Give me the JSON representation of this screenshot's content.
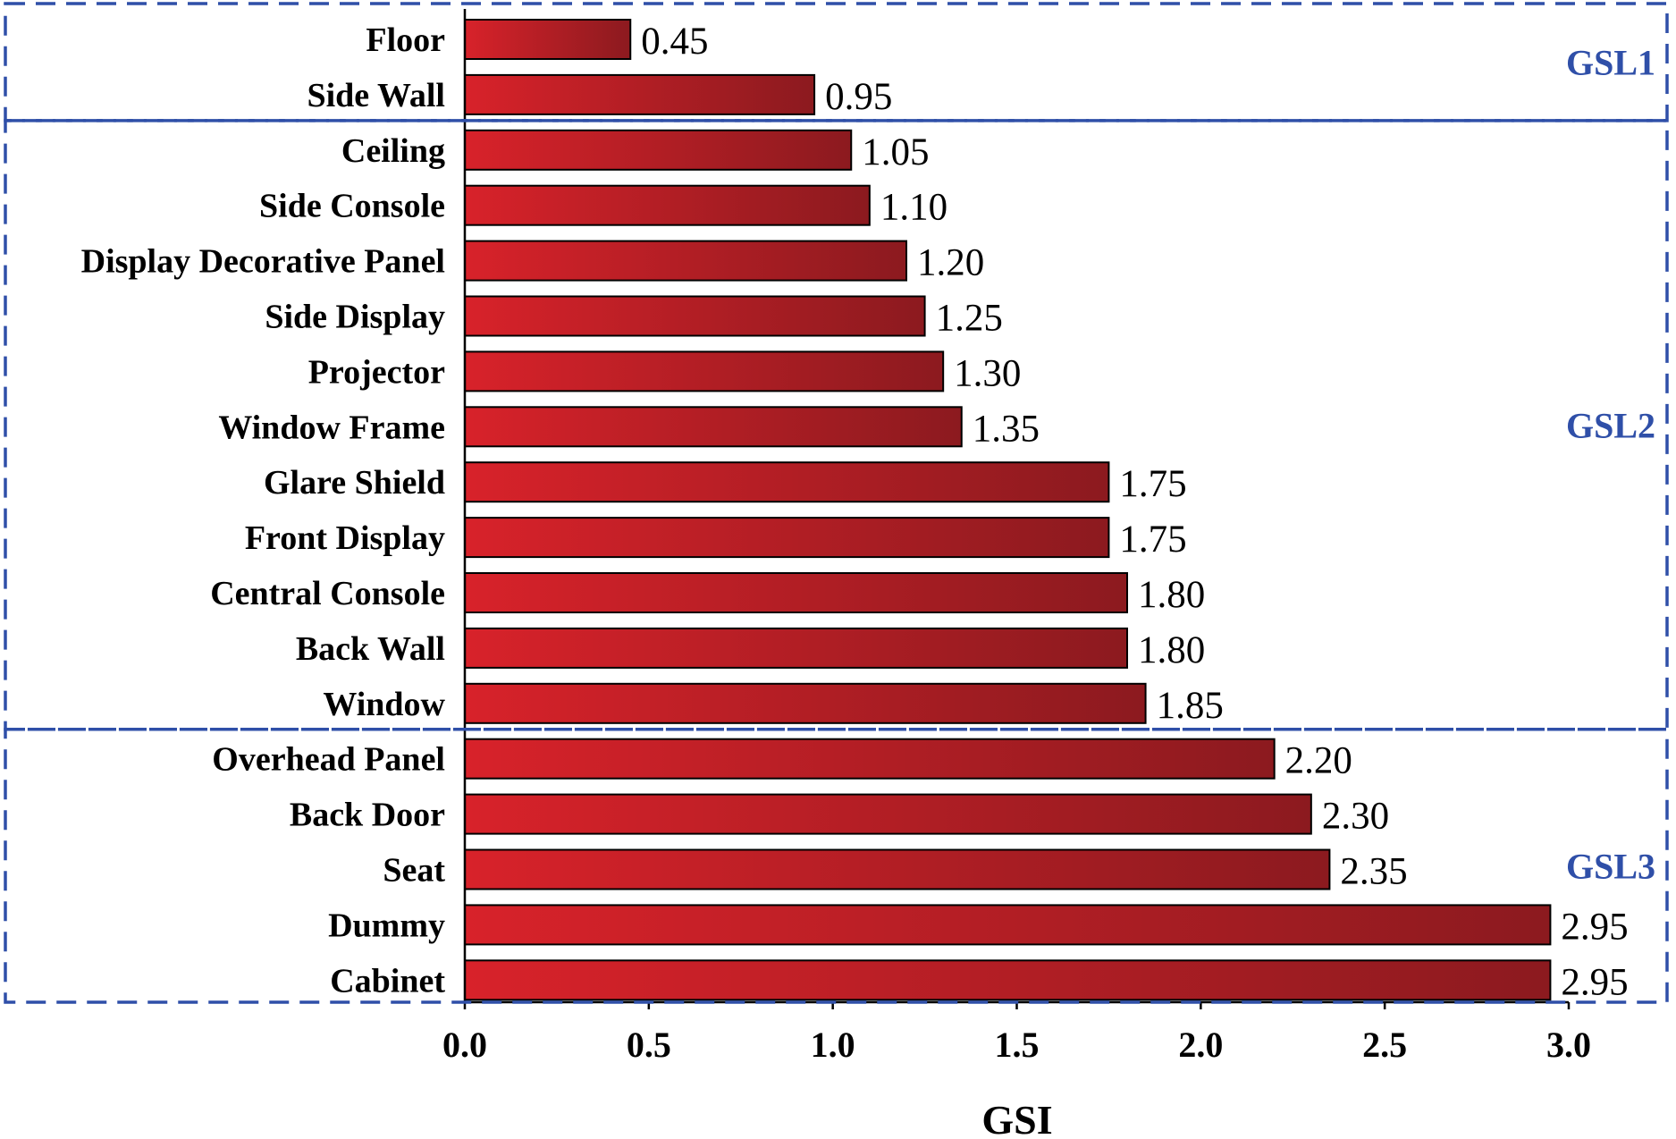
{
  "chart_data": {
    "type": "bar",
    "orientation": "horizontal",
    "categories": [
      "Floor",
      "Side Wall",
      "Ceiling",
      "Side Console",
      "Display Decorative Panel",
      "Side Display",
      "Projector",
      "Window Frame",
      "Glare Shield",
      "Front Display",
      "Central Console",
      "Back Wall",
      "Window",
      "Overhead Panel",
      "Back Door",
      "Seat",
      "Dummy",
      "Cabinet"
    ],
    "values": [
      0.45,
      0.95,
      1.05,
      1.1,
      1.2,
      1.25,
      1.3,
      1.35,
      1.75,
      1.75,
      1.8,
      1.8,
      1.85,
      2.2,
      2.3,
      2.35,
      2.95,
      2.95
    ],
    "value_labels": [
      "0.45",
      "0.95",
      "1.05",
      "1.10",
      "1.20",
      "1.25",
      "1.30",
      "1.35",
      "1.75",
      "1.75",
      "1.80",
      "1.80",
      "1.85",
      "2.20",
      "2.30",
      "2.35",
      "2.95",
      "2.95"
    ],
    "xlabel": "GSI",
    "ylabel": "",
    "xlim": [
      0,
      3.0
    ],
    "xticks": [
      "0.0",
      "0.5",
      "1.0",
      "1.5",
      "2.0",
      "2.5",
      "3.0"
    ],
    "grid": false,
    "groups": [
      {
        "label": "GSL1",
        "first_index": 0,
        "last_index": 1
      },
      {
        "label": "GSL2",
        "first_index": 2,
        "last_index": 12
      },
      {
        "label": "GSL3",
        "first_index": 13,
        "last_index": 17
      }
    ],
    "colors": {
      "bar_light": "#d8222a",
      "bar_dark": "#8c1a1f",
      "group_box": "#2f4fa8",
      "group_label": "#2f4fa8"
    }
  }
}
